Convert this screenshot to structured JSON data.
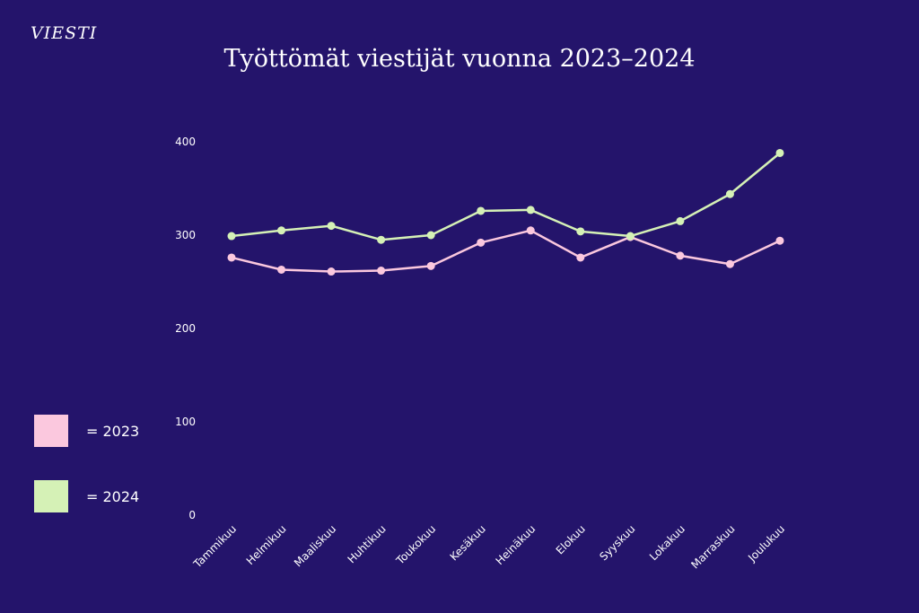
{
  "header": {
    "logo": "VIESTI",
    "title": "Työttömät viestijät vuonna 2023–2024"
  },
  "colors": {
    "background": "#24146b",
    "series_2023": "#fbc8de",
    "series_2024": "#d5f1b6"
  },
  "legend": {
    "items": [
      {
        "label": "= 2023",
        "color": "#fbc8de"
      },
      {
        "label": "= 2024",
        "color": "#d5f1b6"
      }
    ]
  },
  "chart_data": {
    "type": "line",
    "title": "Työttömät viestijät vuonna 2023–2024",
    "xlabel": "",
    "ylabel": "",
    "categories": [
      "Tammikuu",
      "Helmikuu",
      "Maaliskuu",
      "Huhtikuu",
      "Toukokuu",
      "Kesäkuu",
      "Heinäkuu",
      "Elokuu",
      "Syyskuu",
      "Lokakuu",
      "Marraskuu",
      "Joulukuu"
    ],
    "series": [
      {
        "name": "2023",
        "color": "#fbc8de",
        "values": [
          276,
          263,
          261,
          262,
          267,
          292,
          305,
          276,
          298,
          278,
          269,
          294
        ]
      },
      {
        "name": "2024",
        "color": "#d5f1b6",
        "values": [
          299,
          305,
          310,
          295,
          300,
          326,
          327,
          304,
          299,
          315,
          344,
          388
        ]
      }
    ],
    "ylim": [
      0,
      400
    ],
    "yticks": [
      0,
      100,
      200,
      300,
      400
    ],
    "grid": false,
    "legend_position": "bottom-left"
  }
}
